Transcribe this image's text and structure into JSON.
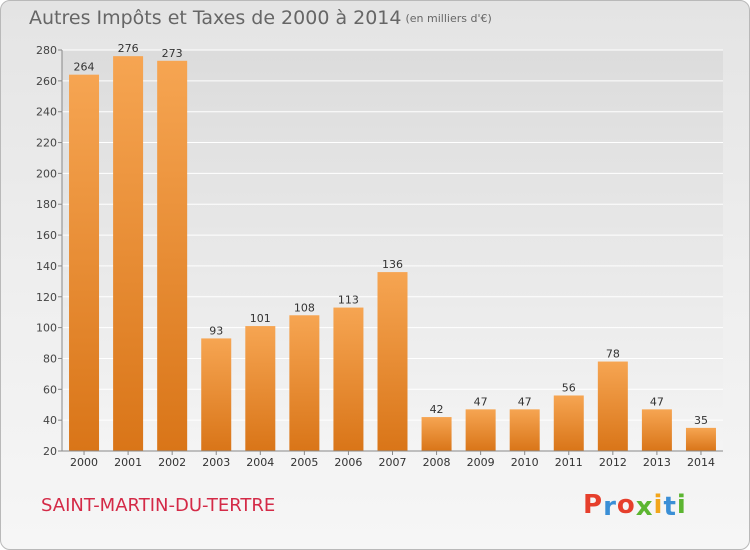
{
  "header": {
    "title": "Autres Impôts et Taxes de 2000 à 2014",
    "unit": "(en milliers d'€)"
  },
  "footer": {
    "commune": "SAINT-MARTIN-DU-TERTRE",
    "logo_text": "Proxiti"
  },
  "colors": {
    "bar_light": "#f6a552",
    "bar_dark": "#d97518",
    "commune_text": "#d42a47",
    "logo_letters": [
      "#e63f2c",
      "#3b8fd6",
      "#e63f2c",
      "#5cb531",
      "#f2a61b",
      "#3b8fd6",
      "#5cb531"
    ]
  },
  "chart_data": {
    "type": "bar",
    "title": "Autres Impôts et Taxes de 2000 à 2014",
    "subtitle": "(en milliers d'€)",
    "categories": [
      "2000",
      "2001",
      "2002",
      "2003",
      "2004",
      "2005",
      "2006",
      "2007",
      "2008",
      "2009",
      "2010",
      "2011",
      "2012",
      "2013",
      "2014"
    ],
    "values": [
      264,
      276,
      273,
      93,
      101,
      108,
      113,
      136,
      42,
      47,
      47,
      56,
      78,
      47,
      35
    ],
    "ylim": [
      20,
      280
    ],
    "yticks": [
      20,
      40,
      60,
      80,
      100,
      120,
      140,
      160,
      180,
      200,
      220,
      240,
      260,
      280
    ],
    "grid": true,
    "legend": "none"
  }
}
